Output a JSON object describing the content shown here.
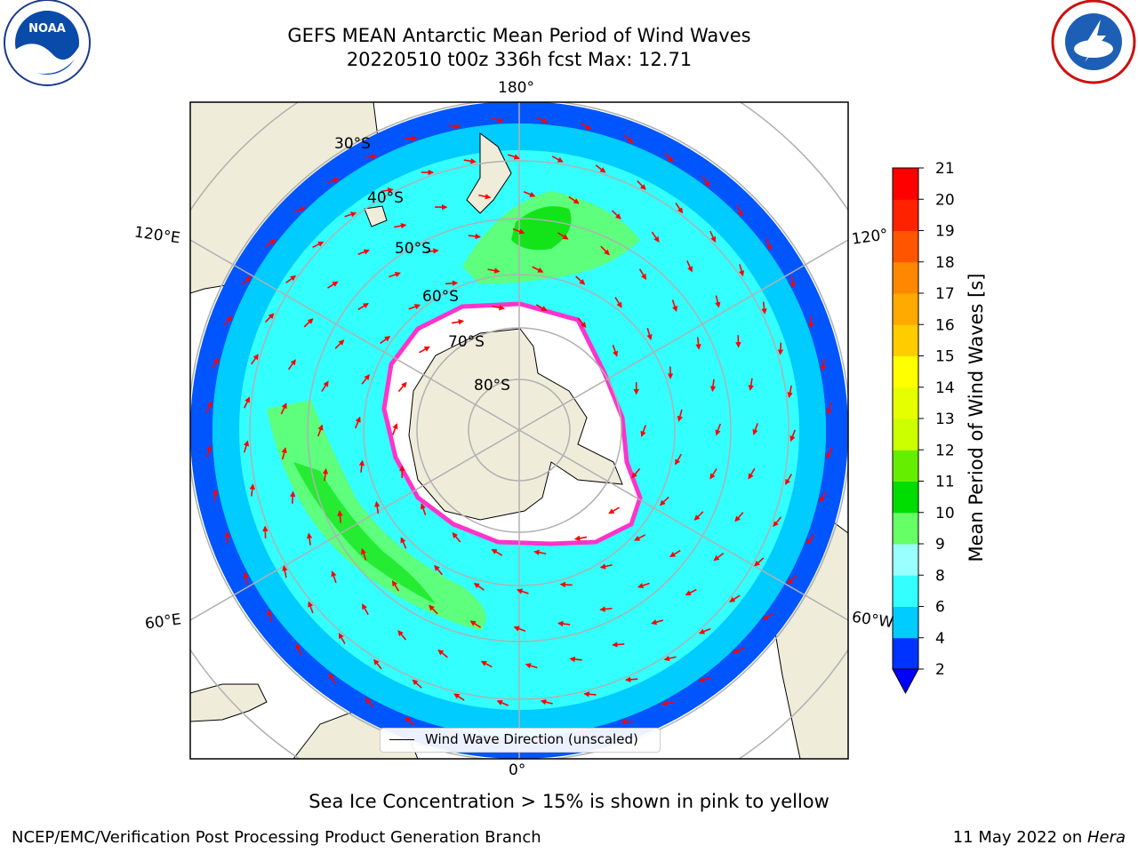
{
  "header": {
    "title_line1": "GEFS MEAN Antarctic Mean Period of Wind Waves",
    "title_line2": "20220510 t00z 336h fcst   Max: 12.71"
  },
  "logos": {
    "left": "noaa-logo",
    "right": "nws-logo"
  },
  "map": {
    "projection": "south-polar-stereographic",
    "lon_labels": {
      "top": "180°",
      "bottom": "0°",
      "left_upper": "120°E",
      "left_lower": "60°E",
      "right_upper": "120°",
      "right_lower": "60°W"
    },
    "lat_labels": [
      "30°S",
      "40°S",
      "50°S",
      "60°S",
      "70°S",
      "80°S"
    ],
    "legend": "Wind Wave Direction (unscaled)",
    "colors": {
      "land": "#efedda",
      "ice_edge": "#ff33cc",
      "arrows": "#ff0000",
      "grid": "#b0b0b0"
    }
  },
  "colorbar": {
    "label": "Mean Period of Wind Waves [s]",
    "ticks": [
      "2",
      "4",
      "6",
      "8",
      "9",
      "10",
      "11",
      "12",
      "13",
      "14",
      "15",
      "16",
      "17",
      "18",
      "19",
      "20",
      "21"
    ],
    "colors": [
      "#0033ff",
      "#00ccff",
      "#33ffff",
      "#99ffff",
      "#66ff66",
      "#00dd00",
      "#66ee00",
      "#ccff00",
      "#e6ff00",
      "#ffff00",
      "#ffcc00",
      "#ffaa00",
      "#ff8800",
      "#ff5500",
      "#ff2200",
      "#ff0000"
    ],
    "under_color": "#0000ff"
  },
  "footer": {
    "note": "Sea Ice Concentration > 15% is shown in pink to yellow",
    "credit_left": "NCEP/EMC/Verification Post Processing Product Generation Branch",
    "credit_date": "11 May 2022 on ",
    "credit_host": "Hera"
  }
}
